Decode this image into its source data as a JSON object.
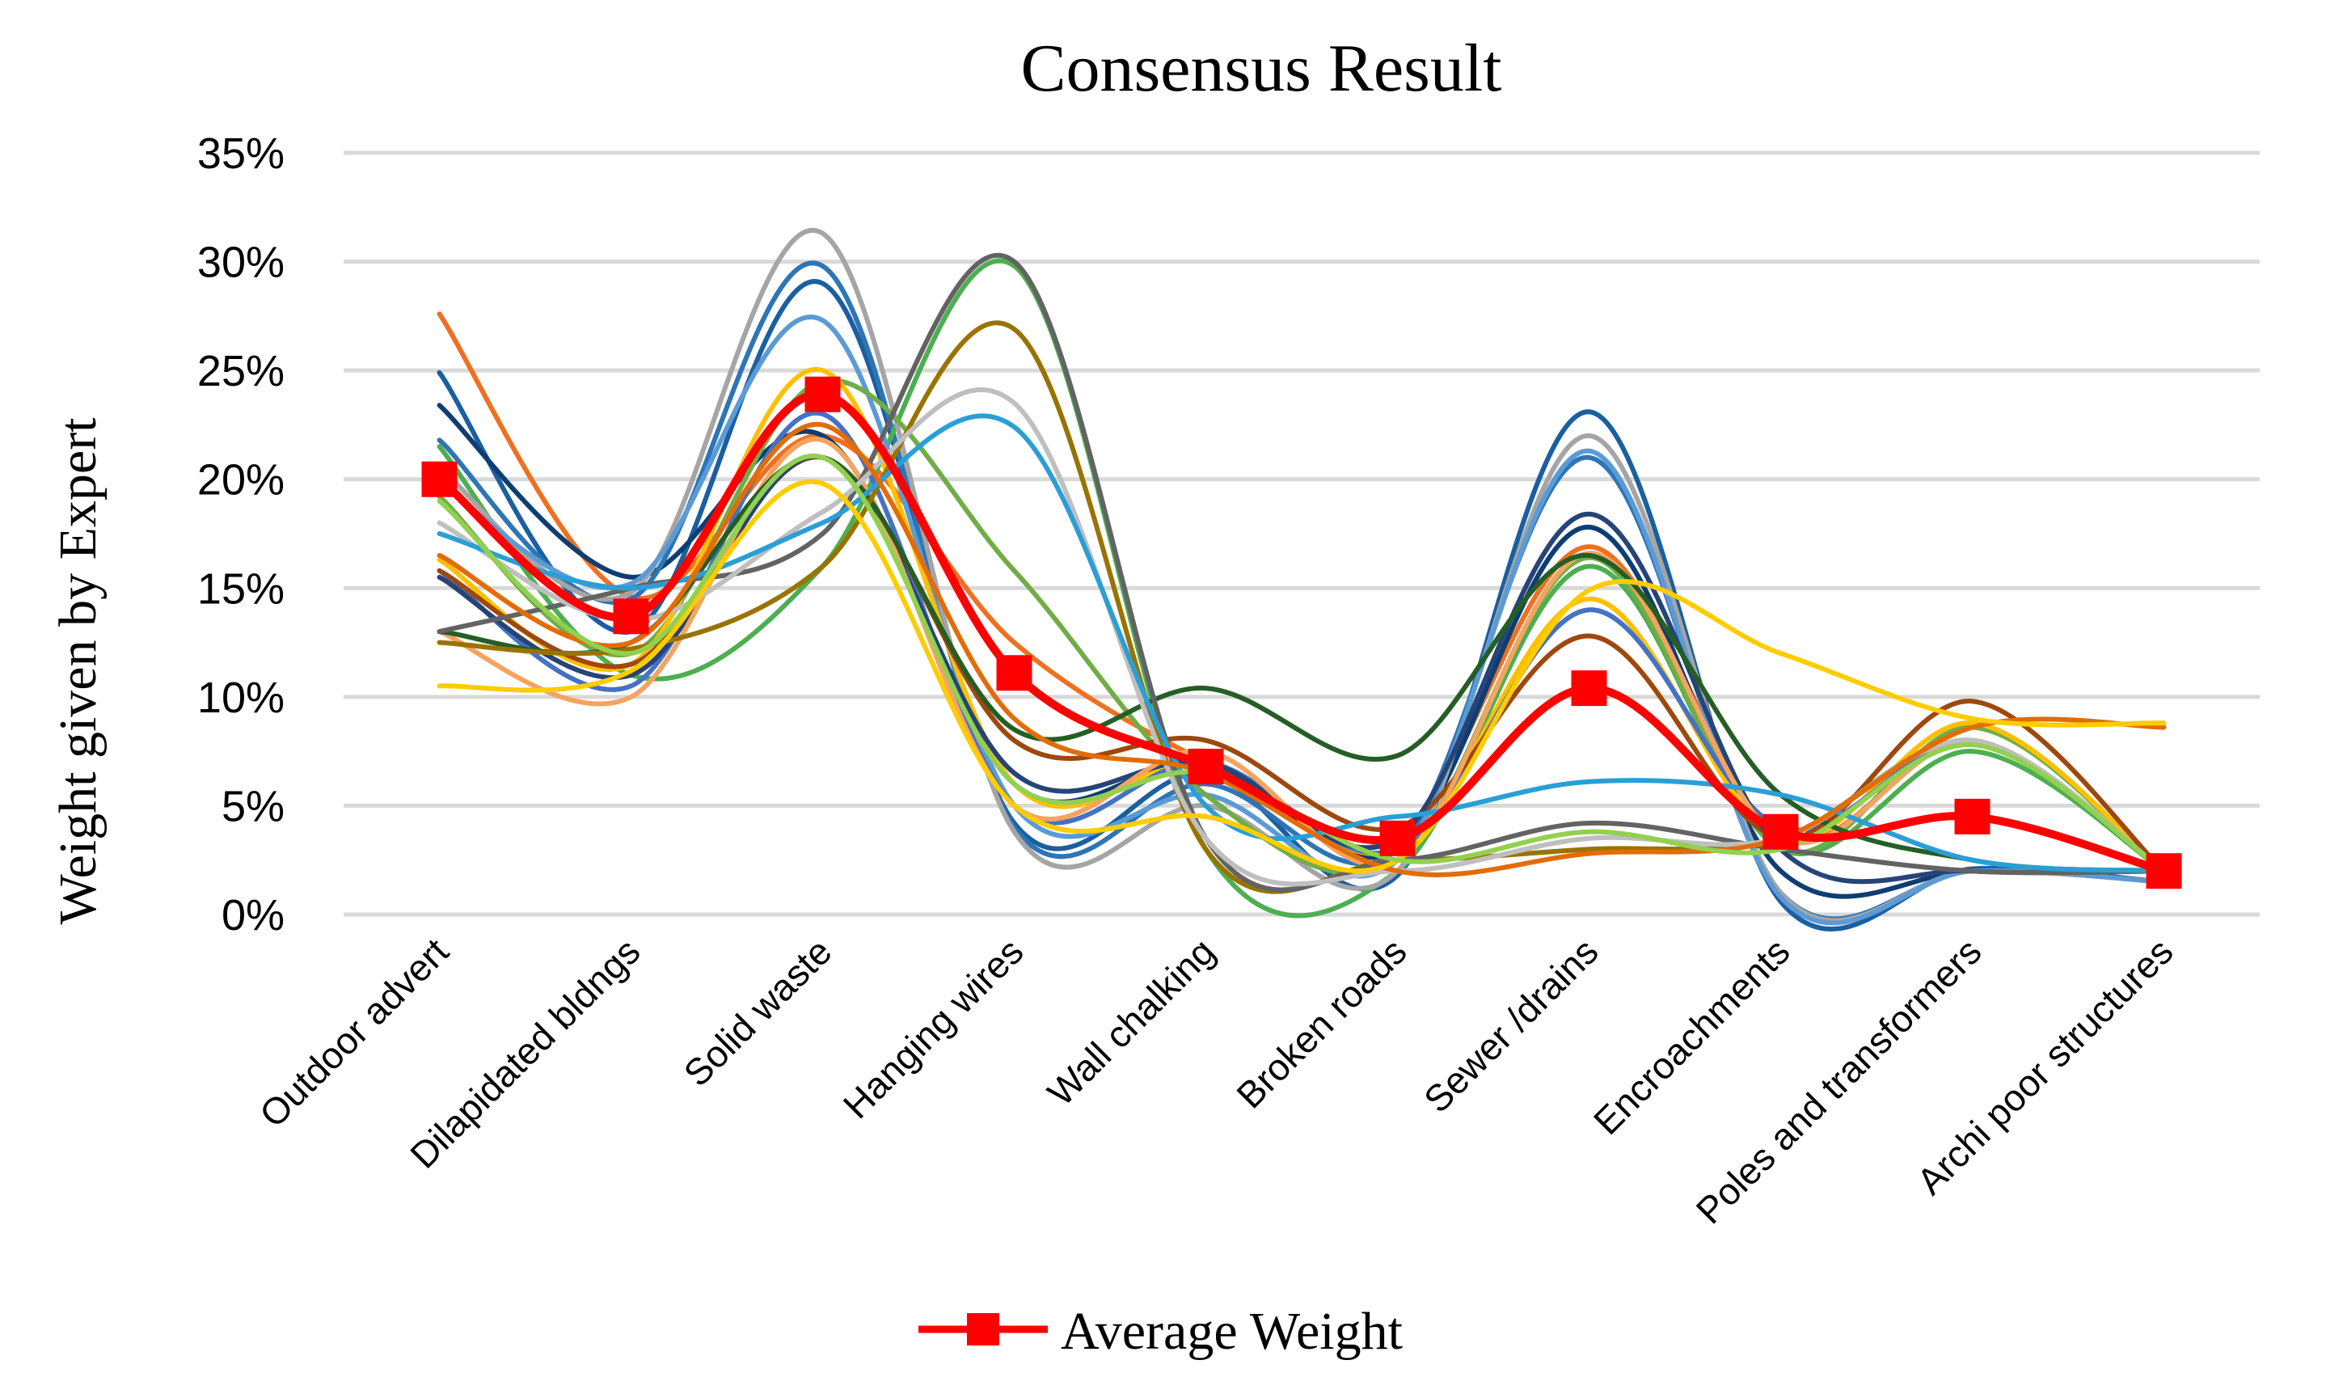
{
  "chart_data": {
    "type": "line",
    "title": "Consensus Result",
    "xlabel": "",
    "ylabel": "Weight given by Expert",
    "ylim": [
      0,
      35
    ],
    "y_ticks": [
      "0%",
      "5%",
      "10%",
      "15%",
      "20%",
      "25%",
      "30%",
      "35%"
    ],
    "grid": true,
    "legend_position": "bottom",
    "categories": [
      "Outdoor advert",
      "Dilapidated bldngs",
      "Solid waste",
      "Hanging wires",
      "Wall chalking",
      "Broken roads",
      "Sewer /drains",
      "Encroachments",
      "Poles and transformers",
      "Archi poor structures"
    ],
    "average_series": {
      "name": "Average Weight",
      "color": "#ff0000",
      "values": [
        20,
        13.7,
        23.9,
        11.1,
        6.8,
        3.5,
        10.4,
        3.8,
        4.5,
        2.0
      ]
    },
    "expert_series": [
      {
        "color": "#f07020",
        "values": [
          27.6,
          14.6,
          22.0,
          12.5,
          7.0,
          3.5,
          16.9,
          3.6,
          8.0,
          2.0
        ]
      },
      {
        "color": "#1a5fa0",
        "values": [
          24.9,
          13.0,
          29.0,
          4.2,
          6.5,
          1.8,
          23.1,
          0.6,
          2.1,
          1.5
        ]
      },
      {
        "color": "#0d3e73",
        "values": [
          23.4,
          15.5,
          22.0,
          6.0,
          7.0,
          3.0,
          17.8,
          2.0,
          2.0,
          2.0
        ]
      },
      {
        "color": "#2e75b6",
        "values": [
          21.8,
          14.5,
          29.8,
          4.0,
          6.0,
          3.0,
          21.0,
          1.0,
          2.0,
          1.5
        ]
      },
      {
        "color": "#4caf50",
        "values": [
          21.5,
          11.0,
          16.0,
          29.8,
          3.0,
          2.0,
          16.0,
          3.0,
          7.5,
          2.0
        ]
      },
      {
        "color": "#a5a5a5",
        "values": [
          20.5,
          14.8,
          31.3,
          3.8,
          5.0,
          2.0,
          22.0,
          1.0,
          2.0,
          1.5
        ]
      },
      {
        "color": "#5b9bd5",
        "values": [
          19.8,
          15.2,
          27.3,
          5.0,
          5.5,
          2.5,
          21.3,
          0.8,
          2.0,
          1.5
        ]
      },
      {
        "color": "#70ad47",
        "values": [
          19.2,
          12.0,
          24.5,
          15.8,
          5.5,
          2.5,
          16.4,
          3.0,
          8.6,
          2.0
        ]
      },
      {
        "color": "#ffc000",
        "values": [
          16.3,
          11.5,
          25.0,
          6.0,
          7.0,
          3.0,
          14.5,
          3.5,
          8.8,
          2.0
        ]
      },
      {
        "color": "#4472c4",
        "values": [
          15.8,
          10.5,
          23.0,
          5.0,
          7.0,
          3.0,
          14.0,
          4.0,
          8.0,
          2.0
        ]
      },
      {
        "color": "#9e480e",
        "values": [
          15.8,
          11.5,
          21.0,
          8.0,
          8.0,
          4.0,
          12.8,
          3.5,
          9.8,
          2.0
        ]
      },
      {
        "color": "#264478",
        "values": [
          15.5,
          11.0,
          21.0,
          6.5,
          7.0,
          3.5,
          18.4,
          3.0,
          2.0,
          2.0
        ]
      },
      {
        "color": "#f4a460",
        "values": [
          13.0,
          10.0,
          21.8,
          5.0,
          7.5,
          2.5,
          16.6,
          3.5,
          8.0,
          2.0
        ]
      },
      {
        "color": "#255e25",
        "values": [
          13.0,
          12.5,
          21.0,
          8.5,
          10.4,
          7.3,
          16.5,
          5.5,
          2.5,
          2.0
        ]
      },
      {
        "color": "#997300",
        "values": [
          12.5,
          12.2,
          16.0,
          26.9,
          3.0,
          2.5,
          3.0,
          3.5,
          8.0,
          2.0
        ]
      },
      {
        "color": "#636363",
        "values": [
          13.0,
          15.0,
          17.5,
          30.0,
          3.5,
          2.5,
          4.2,
          3.0,
          2.0,
          2.0
        ]
      },
      {
        "color": "#bfbfbf",
        "values": [
          18.0,
          13.5,
          18.5,
          23.5,
          3.5,
          2.0,
          3.5,
          3.5,
          8.0,
          2.0
        ]
      },
      {
        "color": "#2a9fd6",
        "values": [
          17.5,
          15.0,
          18.0,
          22.4,
          5.0,
          4.5,
          6.1,
          5.5,
          2.5,
          2.0
        ]
      },
      {
        "color": "#e36c09",
        "values": [
          16.5,
          12.5,
          22.5,
          9.0,
          6.5,
          2.0,
          2.8,
          3.5,
          8.6,
          8.6
        ]
      },
      {
        "color": "#ffcc00",
        "values": [
          10.5,
          11.2,
          19.8,
          5.0,
          4.5,
          2.5,
          14.9,
          12.0,
          9.0,
          8.8
        ]
      },
      {
        "color": "#92d050",
        "values": [
          19.0,
          12.0,
          21.0,
          6.0,
          6.5,
          2.5,
          3.8,
          3.0,
          7.8,
          2.0
        ]
      }
    ]
  }
}
